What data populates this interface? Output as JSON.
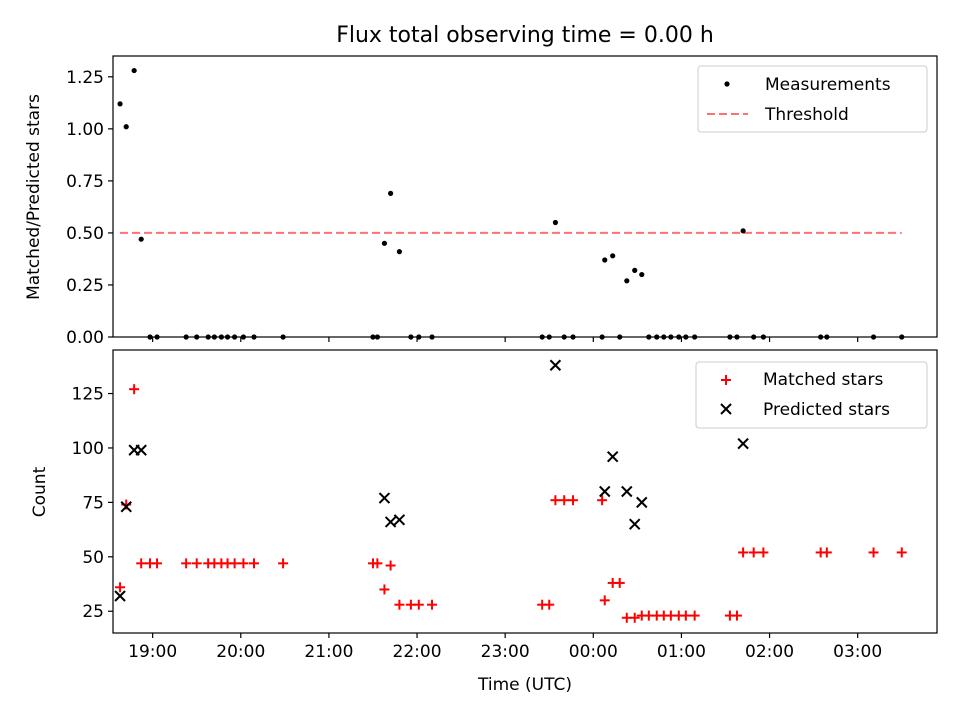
{
  "chart_data": [
    {
      "type": "scatter",
      "title": "Flux total observing time = 0.00 h",
      "xlabel": "",
      "ylabel": "Matched/Predicted stars",
      "xlim": [
        18.55,
        27.9
      ],
      "ylim": [
        0,
        1.35
      ],
      "yticks": [
        "0.00",
        "0.25",
        "0.50",
        "0.75",
        "1.00",
        "1.25"
      ],
      "legend_position": "top-right",
      "legend": [
        {
          "label": "Measurements",
          "marker": "dot",
          "color": "#000000"
        },
        {
          "label": "Threshold",
          "marker": "dashed-line",
          "color": "#ff7070"
        }
      ],
      "series": [
        {
          "name": "Measurements",
          "color": "#000000",
          "x": [
            18.63,
            18.7,
            18.79,
            18.87,
            18.97,
            19.05,
            19.38,
            19.5,
            19.63,
            19.7,
            19.78,
            19.85,
            19.93,
            20.03,
            20.15,
            20.48,
            21.5,
            21.55,
            21.63,
            21.7,
            21.8,
            21.93,
            22.02,
            22.17,
            23.42,
            23.5,
            23.57,
            23.67,
            23.77,
            24.1,
            24.13,
            24.22,
            24.3,
            24.38,
            24.47,
            24.55,
            24.63,
            24.72,
            24.8,
            24.88,
            24.97,
            25.05,
            25.15,
            25.55,
            25.63,
            25.7,
            25.82,
            25.93,
            26.58,
            26.65,
            27.18,
            27.5
          ],
          "y": [
            1.12,
            1.01,
            1.28,
            0.47,
            0.0,
            0.0,
            0.0,
            0.0,
            0.0,
            0.0,
            0.0,
            0.0,
            0.0,
            0.0,
            0.0,
            0.0,
            0.0,
            0.0,
            0.45,
            0.69,
            0.41,
            0.0,
            0.0,
            0.0,
            0.0,
            0.0,
            0.55,
            0.0,
            0.0,
            0.0,
            0.37,
            0.39,
            0.0,
            0.27,
            0.32,
            0.3,
            0.0,
            0.0,
            0.0,
            0.0,
            0.0,
            0.0,
            0.0,
            0.0,
            0.0,
            0.51,
            0.0,
            0.0,
            0.0,
            0.0,
            0.0,
            0.0
          ]
        },
        {
          "name": "Threshold",
          "color": "#ff7070",
          "x": [
            18.63,
            27.5
          ],
          "y": [
            0.5,
            0.5
          ]
        }
      ]
    },
    {
      "type": "scatter",
      "title": "",
      "xlabel": "Time (UTC)",
      "ylabel": "Count",
      "xlim": [
        18.55,
        27.9
      ],
      "ylim": [
        15,
        145
      ],
      "yticks": [
        "25",
        "50",
        "75",
        "100",
        "125"
      ],
      "xticks": [
        "19:00",
        "20:00",
        "21:00",
        "22:00",
        "23:00",
        "00:00",
        "01:00",
        "02:00",
        "03:00"
      ],
      "legend_position": "top-right",
      "legend": [
        {
          "label": "Matched stars",
          "marker": "plus",
          "color": "#ff0000"
        },
        {
          "label": "Predicted stars",
          "marker": "x",
          "color": "#000000"
        }
      ],
      "series": [
        {
          "name": "Matched stars",
          "color": "#ff0000",
          "x": [
            18.63,
            18.7,
            18.79,
            18.87,
            18.97,
            19.05,
            19.38,
            19.5,
            19.63,
            19.7,
            19.78,
            19.85,
            19.93,
            20.03,
            20.15,
            20.48,
            21.5,
            21.55,
            21.63,
            21.7,
            21.8,
            21.93,
            22.02,
            22.17,
            23.42,
            23.5,
            23.57,
            23.67,
            23.77,
            24.1,
            24.13,
            24.22,
            24.3,
            24.38,
            24.47,
            24.55,
            24.63,
            24.72,
            24.8,
            24.88,
            24.97,
            25.05,
            25.15,
            25.55,
            25.63,
            25.7,
            25.82,
            25.93,
            26.58,
            26.65,
            27.18,
            27.5
          ],
          "y": [
            36,
            74,
            127,
            47,
            47,
            47,
            47,
            47,
            47,
            47,
            47,
            47,
            47,
            47,
            47,
            47,
            47,
            47,
            35,
            46,
            28,
            28,
            28,
            28,
            28,
            28,
            76,
            76,
            76,
            76,
            30,
            38,
            38,
            22,
            22,
            23,
            23,
            23,
            23,
            23,
            23,
            23,
            23,
            23,
            23,
            52,
            52,
            52,
            52,
            52,
            52,
            52
          ]
        },
        {
          "name": "Predicted stars",
          "color": "#000000",
          "x": [
            18.63,
            18.7,
            18.79,
            18.87,
            21.63,
            21.7,
            21.8,
            23.57,
            24.13,
            24.22,
            24.38,
            24.47,
            24.55,
            25.7
          ],
          "y": [
            32,
            73,
            99,
            99,
            77,
            66,
            67,
            138,
            80,
            96,
            80,
            65,
            75,
            102
          ]
        }
      ]
    }
  ]
}
